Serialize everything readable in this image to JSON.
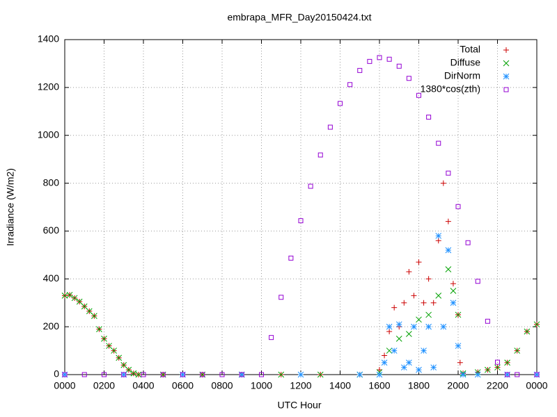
{
  "chart_data": {
    "type": "scatter",
    "title": "embrapa_MFR_Day20150424.txt",
    "x_label": "UTC Hour",
    "y_label": "Irradiance (W/m2)",
    "xlim": [
      0,
      24
    ],
    "ylim": [
      0,
      1400
    ],
    "xticks": [
      {
        "value": 0,
        "label": "0000"
      },
      {
        "value": 2,
        "label": "0200"
      },
      {
        "value": 4,
        "label": "0400"
      },
      {
        "value": 6,
        "label": "0600"
      },
      {
        "value": 8,
        "label": "0800"
      },
      {
        "value": 10,
        "label": "1000"
      },
      {
        "value": 12,
        "label": "1200"
      },
      {
        "value": 14,
        "label": "1400"
      },
      {
        "value": 16,
        "label": "1600"
      },
      {
        "value": 18,
        "label": "1800"
      },
      {
        "value": 20,
        "label": "2000"
      },
      {
        "value": 22,
        "label": "2200"
      },
      {
        "value": 24,
        "label": "0000"
      }
    ],
    "yticks": [
      0,
      200,
      400,
      600,
      800,
      1000,
      1200,
      1400
    ],
    "grid": true,
    "legend": "top-right",
    "series": [
      {
        "name": "Total",
        "color": "#cc0000",
        "marker": "plus",
        "x": [
          0,
          0.25,
          0.5,
          0.75,
          1,
          1.25,
          1.5,
          1.75,
          2,
          2.25,
          2.5,
          2.75,
          3,
          3.25,
          3.5,
          3.75,
          5,
          7,
          9,
          11,
          13,
          15,
          16,
          16.25,
          16.5,
          16.75,
          17,
          17.25,
          17.5,
          17.75,
          18,
          18.25,
          18.5,
          18.75,
          19,
          19.25,
          19.5,
          19.75,
          20,
          20.1,
          20.25,
          21,
          21.5,
          22,
          22.5,
          23,
          23.5,
          24
        ],
        "values": [
          330,
          333,
          320,
          305,
          285,
          265,
          245,
          190,
          150,
          120,
          100,
          70,
          40,
          20,
          5,
          0,
          0,
          0,
          0,
          0,
          0,
          0,
          20,
          80,
          180,
          280,
          200,
          300,
          430,
          330,
          470,
          300,
          400,
          300,
          560,
          800,
          640,
          380,
          250,
          50,
          5,
          10,
          20,
          30,
          50,
          100,
          180,
          210
        ]
      },
      {
        "name": "Diffuse",
        "color": "#00a000",
        "marker": "cross",
        "x": [
          0,
          0.25,
          0.5,
          0.75,
          1,
          1.25,
          1.5,
          1.75,
          2,
          2.25,
          2.5,
          2.75,
          3,
          3.25,
          3.5,
          3.75,
          5,
          7,
          9,
          11,
          13,
          15,
          16,
          16.5,
          17,
          17.5,
          18,
          18.5,
          19,
          19.5,
          19.75,
          20,
          20.25,
          21,
          21.5,
          22,
          22.5,
          23,
          23.5,
          24
        ],
        "values": [
          330,
          333,
          320,
          305,
          285,
          265,
          245,
          190,
          150,
          120,
          100,
          70,
          40,
          20,
          5,
          0,
          0,
          0,
          0,
          0,
          0,
          0,
          10,
          100,
          150,
          170,
          230,
          250,
          330,
          440,
          350,
          250,
          5,
          10,
          20,
          30,
          50,
          100,
          180,
          210
        ]
      },
      {
        "name": "DirNorm",
        "color": "#1e90ff",
        "marker": "star",
        "x": [
          0,
          3,
          6,
          9,
          12,
          15,
          16,
          16.25,
          16.5,
          16.75,
          17,
          17.25,
          17.5,
          17.75,
          18,
          18.25,
          18.5,
          18.75,
          19,
          19.25,
          19.5,
          19.75,
          20,
          20.25,
          21,
          22.5,
          24
        ],
        "values": [
          0,
          0,
          0,
          0,
          0,
          0,
          0,
          50,
          200,
          100,
          210,
          30,
          50,
          200,
          20,
          100,
          200,
          30,
          580,
          200,
          520,
          300,
          120,
          0,
          0,
          0,
          0
        ]
      },
      {
        "name": "1380*cos(zth)",
        "color": "#9400d3",
        "marker": "square",
        "x": [
          0,
          1,
          2,
          3,
          4,
          5,
          6,
          7,
          8,
          9,
          10,
          10.5,
          11,
          11.5,
          12,
          12.5,
          13,
          13.5,
          14,
          14.5,
          15,
          15.5,
          16,
          16.5,
          17,
          17.5,
          18,
          18.5,
          19,
          19.5,
          20,
          20.5,
          21,
          21.5,
          22,
          22.5,
          23,
          24
        ],
        "values": [
          0,
          0,
          0,
          0,
          0,
          0,
          0,
          0,
          0,
          0,
          0,
          155,
          323,
          487,
          643,
          787,
          918,
          1034,
          1133,
          1212,
          1271,
          1309,
          1325,
          1318,
          1289,
          1238,
          1167,
          1076,
          967,
          842,
          702,
          551,
          390,
          223,
          52,
          0,
          0,
          0
        ]
      }
    ]
  }
}
